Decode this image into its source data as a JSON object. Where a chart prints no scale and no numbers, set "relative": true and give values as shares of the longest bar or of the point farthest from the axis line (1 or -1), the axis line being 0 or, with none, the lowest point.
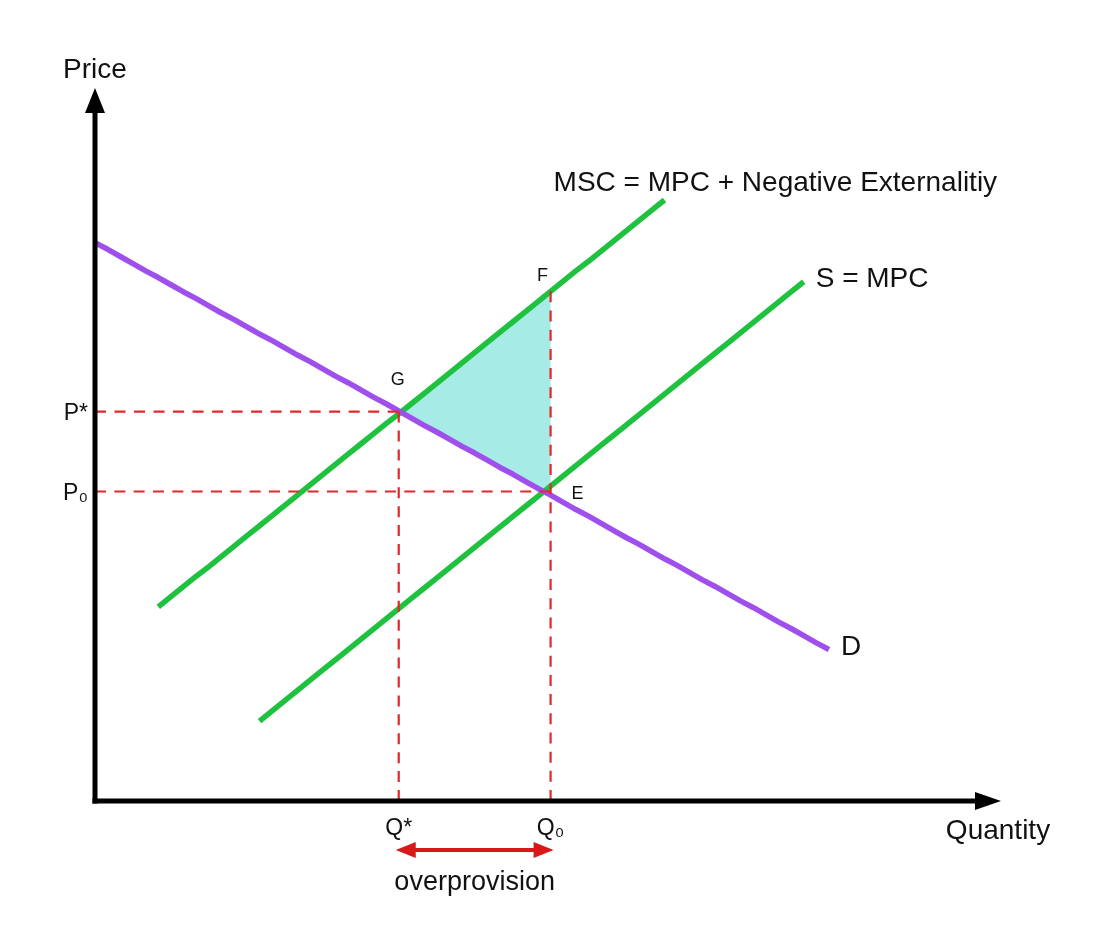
{
  "chart_data": {
    "type": "line",
    "relative": true,
    "xlabel": "Quantity",
    "ylabel": "Price",
    "categories": [
      null,
      null,
      null,
      null,
      null,
      null,
      null,
      null,
      null,
      null,
      null,
      null,
      null,
      null,
      null,
      null,
      null,
      null,
      null,
      null,
      null,
      null,
      null,
      null,
      "Q*",
      null,
      null,
      null,
      null,
      null,
      null,
      null,
      null,
      null,
      null,
      null,
      "Q₀",
      null,
      null,
      null,
      null,
      null,
      null,
      null,
      null,
      null,
      null,
      null,
      null,
      null,
      null,
      null,
      null,
      null,
      null,
      null,
      null,
      null,
      null
    ],
    "series": [
      {
        "color": "#a6ebe6",
        "values": [
          null,
          null,
          null,
          null,
          null,
          null,
          null,
          null,
          null,
          null,
          null,
          null,
          null,
          null,
          null,
          null,
          null,
          null,
          null,
          null,
          null,
          null,
          null,
          null,
          null,
          null,
          null,
          null,
          null,
          null,
          null,
          null,
          null,
          null,
          null,
          null,
          null,
          null,
          null,
          null,
          null,
          null,
          null,
          null,
          null,
          null,
          null,
          null,
          null,
          null,
          null,
          null,
          null,
          null,
          null,
          null,
          null,
          null,
          null
        ],
        "upper": [
          null,
          null,
          null,
          null,
          null,
          null,
          null,
          null,
          null,
          null,
          null,
          null,
          null,
          null,
          null,
          null,
          null,
          null,
          null,
          null,
          null,
          null,
          null,
          null,
          0.648,
          0.661,
          0.678,
          0.695,
          0.712,
          0.729,
          0.746,
          0.763,
          0.78,
          0.797,
          0.814,
          0.831,
          0.848,
          null,
          null,
          null,
          null,
          null,
          null,
          null,
          null,
          null,
          null,
          null,
          null,
          null,
          null,
          null,
          null,
          null,
          null,
          null,
          null,
          null,
          null
        ],
        "lower": [
          null,
          null,
          null,
          null,
          null,
          null,
          null,
          null,
          null,
          null,
          null,
          null,
          null,
          null,
          null,
          null,
          null,
          null,
          null,
          null,
          null,
          null,
          null,
          null,
          0.648,
          0.637,
          0.625,
          0.614,
          0.602,
          0.59,
          0.579,
          0.567,
          0.555,
          0.544,
          0.532,
          0.52,
          0.509,
          null,
          null,
          null,
          null,
          null,
          null,
          null,
          null,
          null,
          null,
          null,
          null,
          null,
          null,
          null,
          null,
          null,
          null,
          null,
          null,
          null,
          null
        ]
      },
      {
        "name": "P*",
        "color": "#e3262b",
        "line_style": "dashed",
        "values": [
          0.648,
          0.648,
          0.648,
          0.648,
          0.648,
          0.648,
          0.648,
          0.648,
          0.648,
          0.648,
          0.648,
          0.648,
          0.648,
          0.648,
          0.648,
          0.648,
          0.648,
          0.648,
          0.648,
          0.648,
          0.648,
          0.648,
          0.648,
          0.648,
          0.648,
          null,
          null,
          null,
          null,
          null,
          null,
          null,
          null,
          null,
          null,
          null,
          null,
          null,
          null,
          null,
          null,
          null,
          null,
          null,
          null,
          null,
          null,
          null,
          null,
          null,
          null,
          null,
          null,
          null,
          null,
          null,
          null,
          null,
          null
        ]
      },
      {
        "name": "P₀",
        "color": "#e3262b",
        "line_style": "dashed",
        "values": [
          0.515,
          0.515,
          0.515,
          0.515,
          0.515,
          0.515,
          0.515,
          0.515,
          0.515,
          0.515,
          0.515,
          0.515,
          0.515,
          0.515,
          0.515,
          0.515,
          0.515,
          0.515,
          0.515,
          0.515,
          0.515,
          0.515,
          0.515,
          0.515,
          0.515,
          0.515,
          0.515,
          0.515,
          0.515,
          0.515,
          0.515,
          0.515,
          0.515,
          0.515,
          0.515,
          0.515,
          0.515,
          null,
          null,
          null,
          null,
          null,
          null,
          null,
          null,
          null,
          null,
          null,
          null,
          null,
          null,
          null,
          null,
          null,
          null,
          null,
          null,
          null,
          null
        ]
      },
      {
        "color": "#e3262b",
        "line_style": "dashed",
        "x": [
          "Q*",
          "Q*"
        ],
        "values": [
          0,
          0.648
        ]
      },
      {
        "color": "#e3262b",
        "line_style": "dashed",
        "x": [
          "Q₀",
          "Q₀"
        ],
        "values": [
          0,
          0.848
        ]
      },
      {
        "name": "MSC = MPC + Negative Externalitiy",
        "color": "#1fc23f",
        "values": [
          null,
          null,
          null,
          null,
          null,
          0.323,
          0.34,
          0.357,
          0.374,
          0.39,
          0.407,
          0.424,
          0.441,
          0.458,
          0.475,
          0.492,
          0.509,
          0.526,
          0.543,
          0.56,
          0.577,
          0.594,
          0.611,
          0.628,
          0.644,
          0.661,
          0.678,
          0.695,
          0.712,
          0.729,
          0.746,
          0.763,
          0.78,
          0.797,
          0.814,
          0.831,
          0.848,
          0.865,
          0.882,
          0.898,
          0.915,
          0.932,
          0.949,
          0.966,
          0.983,
          1,
          null,
          null,
          null,
          null,
          null,
          null,
          null,
          null,
          null,
          null,
          null,
          null,
          null
        ]
      },
      {
        "name": "S = MPC",
        "color": "#1fc23f",
        "values": [
          null,
          null,
          null,
          null,
          null,
          null,
          null,
          null,
          null,
          null,
          null,
          null,
          null,
          0.133,
          0.15,
          0.167,
          0.184,
          0.201,
          0.218,
          0.235,
          0.252,
          0.269,
          0.286,
          0.303,
          0.32,
          0.337,
          0.354,
          0.371,
          0.388,
          0.405,
          0.422,
          0.439,
          0.456,
          0.473,
          0.49,
          0.507,
          0.524,
          0.541,
          0.558,
          0.575,
          0.592,
          0.609,
          0.626,
          0.643,
          0.66,
          0.677,
          0.694,
          0.711,
          0.728,
          0.745,
          0.762,
          0.779,
          0.796,
          0.813,
          0.83,
          0.847,
          0.864,
          null,
          null
        ]
      },
      {
        "name": "D",
        "color": "#9f50ec",
        "values": [
          0.929,
          0.918,
          0.906,
          0.894,
          0.882,
          0.871,
          0.859,
          0.847,
          0.836,
          0.824,
          0.812,
          0.801,
          0.789,
          0.777,
          0.766,
          0.754,
          0.742,
          0.731,
          0.719,
          0.707,
          0.696,
          0.684,
          0.672,
          0.661,
          0.649,
          0.637,
          0.625,
          0.614,
          0.602,
          0.59,
          0.579,
          0.567,
          0.555,
          0.544,
          0.532,
          0.52,
          0.509,
          0.497,
          0.485,
          0.474,
          0.462,
          0.45,
          0.438,
          0.427,
          0.415,
          0.403,
          0.392,
          0.38,
          0.368,
          0.357,
          0.345,
          0.333,
          0.322,
          0.31,
          0.298,
          0.287,
          0.275,
          0.263,
          0.252
        ]
      }
    ],
    "annotations": [
      {
        "text": "G",
        "x": "Q*",
        "y": 0.648
      },
      {
        "text": "F",
        "x": "Q₀",
        "y": 0.848
      },
      {
        "text": "E",
        "x": "Q₀",
        "y": 0.515
      },
      "overprovision"
    ]
  }
}
